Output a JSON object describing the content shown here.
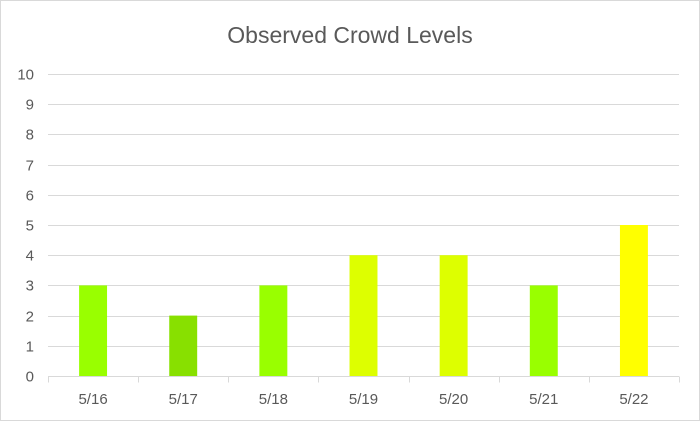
{
  "chart_data": {
    "type": "bar",
    "title": "Observed Crowd Levels",
    "xlabel": "",
    "ylabel": "",
    "categories": [
      "5/16",
      "5/17",
      "5/18",
      "5/19",
      "5/20",
      "5/21",
      "5/22"
    ],
    "values": [
      3,
      2,
      3,
      4,
      4,
      3,
      5
    ],
    "bar_colors": [
      "#99ff00",
      "#88e000",
      "#99ff00",
      "#ddff00",
      "#ddff00",
      "#99ff00",
      "#ffff00"
    ],
    "ylim": [
      0,
      10
    ],
    "y_ticks": [
      "0",
      "1",
      "2",
      "3",
      "4",
      "5",
      "6",
      "7",
      "8",
      "9",
      "10"
    ],
    "grid": true,
    "legend": "none"
  },
  "colors": {
    "text": "#595959",
    "grid": "#d9d9d9",
    "background": "#ffffff"
  }
}
